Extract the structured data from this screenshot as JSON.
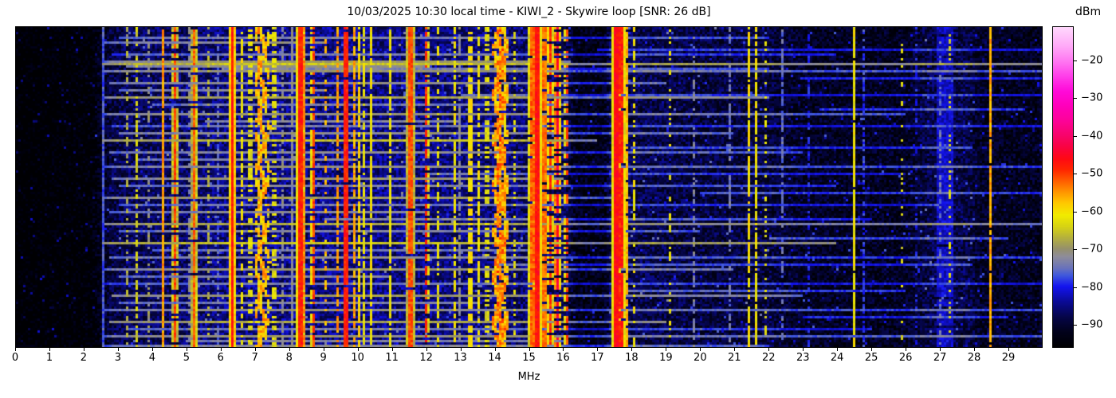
{
  "chart": {
    "title": "10/03/2025 10:30 local time - KIWI_2 - Skywire loop [SNR: 26 dB]",
    "xlabel": "MHz",
    "x_ticks": [
      {
        "v": 0,
        "label": "0"
      },
      {
        "v": 1,
        "label": "1"
      },
      {
        "v": 2,
        "label": "2"
      },
      {
        "v": 3,
        "label": "3"
      },
      {
        "v": 4,
        "label": "4"
      },
      {
        "v": 5,
        "label": "5"
      },
      {
        "v": 6,
        "label": "6"
      },
      {
        "v": 7,
        "label": "7"
      },
      {
        "v": 8,
        "label": "8"
      },
      {
        "v": 9,
        "label": "9"
      },
      {
        "v": 10,
        "label": "10"
      },
      {
        "v": 11,
        "label": "11"
      },
      {
        "v": 12,
        "label": "12"
      },
      {
        "v": 13,
        "label": "13"
      },
      {
        "v": 14,
        "label": "14"
      },
      {
        "v": 15,
        "label": "15"
      },
      {
        "v": 16,
        "label": "16"
      },
      {
        "v": 17,
        "label": "17"
      },
      {
        "v": 18,
        "label": "18"
      },
      {
        "v": 19,
        "label": "19"
      },
      {
        "v": 20,
        "label": "20"
      },
      {
        "v": 21,
        "label": "21"
      },
      {
        "v": 22,
        "label": "22"
      },
      {
        "v": 23,
        "label": "23"
      },
      {
        "v": 24,
        "label": "24"
      },
      {
        "v": 25,
        "label": "25"
      },
      {
        "v": 26,
        "label": "26"
      },
      {
        "v": 27,
        "label": "27"
      },
      {
        "v": 28,
        "label": "28"
      },
      {
        "v": 29,
        "label": "29"
      }
    ],
    "colorbar": {
      "label": "dBm",
      "ticks": [
        {
          "v": -20,
          "label": "−20"
        },
        {
          "v": -30,
          "label": "−30"
        },
        {
          "v": -40,
          "label": "−40"
        },
        {
          "v": -50,
          "label": "−50"
        },
        {
          "v": -60,
          "label": "−60"
        },
        {
          "v": -70,
          "label": "−70"
        },
        {
          "v": -80,
          "label": "−80"
        },
        {
          "v": -90,
          "label": "−90"
        }
      ]
    }
  },
  "chart_data": {
    "type": "heatmap",
    "title": "10/03/2025 10:30 local time - KIWI_2 - Skywire loop [SNR: 26 dB]",
    "xlabel": "MHz",
    "x_range_mhz": [
      0,
      30
    ],
    "y_axis": "time (waterfall rows, unlabeled)",
    "value_units": "dBm",
    "value_range_dbm": [
      -96,
      -11
    ],
    "colorbar_tick_values": [
      -20,
      -30,
      -40,
      -50,
      -60,
      -70,
      -80,
      -90
    ],
    "seed": 42,
    "colormap_stops": [
      [
        -96,
        "#000003"
      ],
      [
        -92,
        "#02021c"
      ],
      [
        -88,
        "#06064a"
      ],
      [
        -84,
        "#0b0b96"
      ],
      [
        -80,
        "#1414f0"
      ],
      [
        -77,
        "#4059dd"
      ],
      [
        -75,
        "#6b74bb"
      ],
      [
        -72,
        "#8f8d9a"
      ],
      [
        -70,
        "#95906d"
      ],
      [
        -67,
        "#b5b13e"
      ],
      [
        -64,
        "#d8d414"
      ],
      [
        -61,
        "#f2ec00"
      ],
      [
        -58,
        "#ffcc00"
      ],
      [
        -55,
        "#ff9900"
      ],
      [
        -52,
        "#ff6000"
      ],
      [
        -49,
        "#ff2800"
      ],
      [
        -46,
        "#ff0a14"
      ],
      [
        -43,
        "#fa0340"
      ],
      [
        -40,
        "#f70568"
      ],
      [
        -36,
        "#fd0397"
      ],
      [
        -32,
        "#ff00bb"
      ],
      [
        -28,
        "#ff0ad9"
      ],
      [
        -24,
        "#ff3eea"
      ],
      [
        -20,
        "#ff78f2"
      ],
      [
        -16,
        "#ffaaf8"
      ],
      [
        -11,
        "#ffd9fd"
      ]
    ],
    "noise_floor_profile_dbm": [
      [
        0,
        -97
      ],
      [
        2.2,
        -96
      ],
      [
        2.8,
        -89
      ],
      [
        3.5,
        -87.5
      ],
      [
        5,
        -87
      ],
      [
        6,
        -85.5
      ],
      [
        8,
        -85
      ],
      [
        10,
        -85
      ],
      [
        12.5,
        -85.5
      ],
      [
        14,
        -86
      ],
      [
        16,
        -87
      ],
      [
        16.4,
        -93
      ],
      [
        17.2,
        -93
      ],
      [
        17.4,
        -88
      ],
      [
        19,
        -88.5
      ],
      [
        20,
        -89.5
      ],
      [
        22,
        -89.5
      ],
      [
        23,
        -91.5
      ],
      [
        26,
        -92
      ],
      [
        26.7,
        -88.5
      ],
      [
        27.8,
        -88.5
      ],
      [
        28.2,
        -91.5
      ],
      [
        30,
        -92
      ]
    ],
    "noise_spread_db": 9,
    "speckle_chance": 0.025,
    "speckle_boost_db": 7,
    "signals": [
      {
        "f": 2.56,
        "w": 0.03,
        "p": -77,
        "duty": 1
      },
      {
        "f": 3.25,
        "w": 0.03,
        "p": -68,
        "duty": 0.45
      },
      {
        "f": 3.53,
        "w": 0.04,
        "p": -64,
        "duty": 0.55
      },
      {
        "f": 3.9,
        "w": 0.03,
        "p": -70,
        "duty": 0.4
      },
      {
        "f": 4.27,
        "w": 0.035,
        "p": -55,
        "duty": 0.95
      },
      {
        "f": 4.65,
        "w": 0.03,
        "p": -50,
        "duty": 0.8
      },
      {
        "f": 5.06,
        "w": 0.03,
        "p": -72,
        "duty": 0.5
      },
      {
        "f": 5.22,
        "w": 0.035,
        "p": -52,
        "duty": 0.9
      },
      {
        "f": 5.62,
        "w": 0.03,
        "p": -67,
        "duty": 0.3
      },
      {
        "f": 5.92,
        "w": 0.03,
        "p": -76,
        "duty": 0.6
      },
      {
        "f": 6.33,
        "w": 0.045,
        "p": -47,
        "duty": 1
      },
      {
        "f": 6.62,
        "w": 0.04,
        "p": -61,
        "duty": 0.6
      },
      {
        "f": 6.85,
        "w": 0.04,
        "p": -63,
        "duty": 0.5
      },
      {
        "f": 7.08,
        "w": 0.06,
        "p": -58,
        "duty": 0.85,
        "wander": 0.06
      },
      {
        "f": 7.2,
        "w": 0.07,
        "p": -57,
        "duty": 0.9,
        "wander": 0.08
      },
      {
        "f": 7.35,
        "w": 0.05,
        "p": -60,
        "duty": 0.7,
        "wander": 0.05
      },
      {
        "f": 7.55,
        "w": 0.04,
        "p": -63,
        "duty": 0.5
      },
      {
        "f": 7.82,
        "w": 0.03,
        "p": -72,
        "duty": 0.6
      },
      {
        "f": 8.05,
        "w": 0.035,
        "p": -72,
        "duty": 0.95
      },
      {
        "f": 8.31,
        "w": 0.05,
        "p": -48,
        "duty": 1
      },
      {
        "f": 8.45,
        "w": 0.04,
        "p": -54,
        "duty": 0.85
      },
      {
        "f": 8.69,
        "w": 0.035,
        "p": -50,
        "duty": 0.75
      },
      {
        "f": 9.05,
        "w": 0.03,
        "p": -57,
        "duty": 0.4
      },
      {
        "f": 9.4,
        "w": 0.035,
        "p": -55,
        "duty": 0.7
      },
      {
        "f": 9.65,
        "w": 0.04,
        "p": -48,
        "duty": 0.95
      },
      {
        "f": 9.88,
        "w": 0.04,
        "p": -56,
        "duty": 0.8
      },
      {
        "f": 10.02,
        "w": 0.05,
        "p": -59,
        "duty": 0.85
      },
      {
        "f": 10.18,
        "w": 0.04,
        "p": -62,
        "duty": 0.7
      },
      {
        "f": 10.38,
        "w": 0.03,
        "p": -61,
        "duty": 0.9
      },
      {
        "f": 10.96,
        "w": 0.03,
        "p": -62,
        "duty": 0.85
      },
      {
        "f": 11.54,
        "w": 0.045,
        "p": -51,
        "duty": 0.95
      },
      {
        "f": 12.0,
        "w": 0.03,
        "p": -49,
        "duty": 0.6
      },
      {
        "f": 12.36,
        "w": 0.04,
        "p": -62,
        "duty": 0.5
      },
      {
        "f": 12.85,
        "w": 0.05,
        "p": -61,
        "duty": 0.6
      },
      {
        "f": 13.0,
        "w": 0.03,
        "p": -72,
        "duty": 0.7
      },
      {
        "f": 13.3,
        "w": 0.05,
        "p": -60,
        "duty": 0.7
      },
      {
        "f": 13.55,
        "w": 0.04,
        "p": -61,
        "duty": 0.6
      },
      {
        "f": 13.78,
        "w": 0.04,
        "p": -63,
        "duty": 0.5
      },
      {
        "f": 14.05,
        "w": 0.07,
        "p": -56,
        "duty": 0.9,
        "wander": 0.05
      },
      {
        "f": 14.17,
        "w": 0.08,
        "p": -54,
        "duty": 0.92,
        "wander": 0.06
      },
      {
        "f": 14.3,
        "w": 0.06,
        "p": -58,
        "duty": 0.8,
        "wander": 0.05
      },
      {
        "f": 14.6,
        "w": 0.04,
        "p": -63,
        "duty": 0.4
      },
      {
        "f": 15.08,
        "w": 0.06,
        "p": -52,
        "duty": 0.95
      },
      {
        "f": 15.25,
        "w": 0.05,
        "p": -47,
        "duty": 1
      },
      {
        "f": 15.45,
        "w": 0.05,
        "p": -53,
        "duty": 0.85
      },
      {
        "f": 15.62,
        "w": 0.04,
        "p": -49,
        "duty": 0.7
      },
      {
        "f": 15.82,
        "w": 0.04,
        "p": -44,
        "duty": 0.65
      },
      {
        "f": 16.1,
        "w": 0.035,
        "p": -50,
        "duty": 0.5
      },
      {
        "f": 17.44,
        "w": 0.03,
        "p": -73,
        "duty": 0.8
      },
      {
        "f": 17.56,
        "w": 0.05,
        "p": -46,
        "duty": 1
      },
      {
        "f": 17.7,
        "w": 0.05,
        "p": -48,
        "duty": 0.95
      },
      {
        "f": 17.85,
        "w": 0.04,
        "p": -57,
        "duty": 0.9
      },
      {
        "f": 18.07,
        "w": 0.035,
        "p": -61,
        "duty": 0.5
      },
      {
        "f": 18.6,
        "w": 0.03,
        "p": -63,
        "duty": 0.35
      },
      {
        "f": 19.1,
        "w": 0.03,
        "p": -62,
        "duty": 0.3
      },
      {
        "f": 19.8,
        "w": 0.03,
        "p": -73,
        "duty": 0.5
      },
      {
        "f": 20.9,
        "w": 0.03,
        "p": -74,
        "duty": 0.55
      },
      {
        "f": 21.12,
        "w": 0.03,
        "p": -63,
        "duty": 0.4
      },
      {
        "f": 21.45,
        "w": 0.035,
        "p": -60,
        "duty": 0.85
      },
      {
        "f": 21.65,
        "w": 0.035,
        "p": -61,
        "duty": 0.75
      },
      {
        "f": 21.95,
        "w": 0.03,
        "p": -63,
        "duty": 0.3
      },
      {
        "f": 22.4,
        "w": 0.03,
        "p": -75,
        "duty": 0.5
      },
      {
        "f": 23.2,
        "w": 0.03,
        "p": -80,
        "duty": 0.4
      },
      {
        "f": 24.5,
        "w": 0.03,
        "p": -61,
        "duty": 0.95
      },
      {
        "f": 24.8,
        "w": 0.03,
        "p": -78,
        "duty": 0.5
      },
      {
        "f": 25.9,
        "w": 0.035,
        "p": -63,
        "duty": 0.18
      },
      {
        "f": 26.3,
        "w": 0.03,
        "p": -80,
        "duty": 0.3
      },
      {
        "f": 27.15,
        "w": 0.25,
        "p": -82,
        "duty": 0.95
      },
      {
        "f": 27.0,
        "w": 0.03,
        "p": -75,
        "duty": 0.4
      },
      {
        "f": 27.3,
        "w": 0.04,
        "p": -64,
        "duty": 0.25
      },
      {
        "f": 28.52,
        "w": 0.035,
        "p": -56,
        "duty": 0.95
      },
      {
        "f": 29.3,
        "w": 0.03,
        "p": -82,
        "duty": 0.4
      }
    ],
    "burst_lines": [
      [
        4,
        3,
        22,
        10
      ],
      [
        6,
        2.6,
        9,
        12
      ],
      [
        9,
        17,
        30,
        9
      ],
      [
        11,
        2.8,
        24,
        9
      ],
      [
        14,
        2.6,
        16.2,
        14
      ],
      [
        15,
        2.5,
        30,
        18
      ],
      [
        16,
        3.2,
        12,
        12
      ],
      [
        17,
        6,
        22,
        10
      ],
      [
        18,
        2.6,
        30,
        13
      ],
      [
        21,
        23,
        30,
        10
      ],
      [
        23,
        2.7,
        19,
        12
      ],
      [
        26,
        3,
        9,
        11
      ],
      [
        28,
        13,
        30,
        9
      ],
      [
        29,
        2.6,
        22,
        15
      ],
      [
        32,
        4,
        16,
        9
      ],
      [
        34,
        23.5,
        29.5,
        11
      ],
      [
        36,
        2.5,
        26,
        13
      ],
      [
        39,
        5.5,
        13,
        10
      ],
      [
        41,
        2.8,
        30,
        9
      ],
      [
        44,
        3,
        21,
        12
      ],
      [
        47,
        2.5,
        17,
        17
      ],
      [
        50,
        18,
        28,
        10
      ],
      [
        52,
        2.7,
        23,
        11
      ],
      [
        55,
        3.5,
        10,
        10
      ],
      [
        58,
        2.6,
        30,
        12
      ],
      [
        61,
        12,
        26,
        9
      ],
      [
        63,
        2.8,
        16,
        13
      ],
      [
        66,
        3,
        24,
        10
      ],
      [
        69,
        20,
        30,
        11
      ],
      [
        71,
        2.5,
        18,
        14
      ],
      [
        74,
        3,
        27,
        9
      ],
      [
        77,
        2.7,
        12,
        11
      ],
      [
        80,
        9,
        25,
        10
      ],
      [
        82,
        2.6,
        30,
        16
      ],
      [
        85,
        3,
        20,
        10
      ],
      [
        88,
        22,
        29,
        12
      ],
      [
        90,
        2.5,
        24,
        18
      ],
      [
        93,
        4,
        15,
        9
      ],
      [
        96,
        2.7,
        30,
        11
      ],
      [
        99,
        14,
        28,
        10
      ],
      [
        101,
        2.6,
        21,
        13
      ],
      [
        104,
        3,
        11,
        10
      ],
      [
        107,
        2.5,
        30,
        9
      ],
      [
        110,
        17.5,
        26,
        11
      ],
      [
        112,
        2.8,
        23,
        14
      ],
      [
        115,
        3,
        13.5,
        10
      ],
      [
        118,
        2.6,
        30,
        12
      ],
      [
        121,
        23,
        29,
        10
      ],
      [
        123,
        2.7,
        19,
        15
      ],
      [
        126,
        3.2,
        25,
        9
      ],
      [
        129,
        2.5,
        30,
        13
      ],
      [
        131,
        5,
        16,
        10
      ],
      [
        133,
        2.6,
        22,
        11
      ]
    ]
  }
}
